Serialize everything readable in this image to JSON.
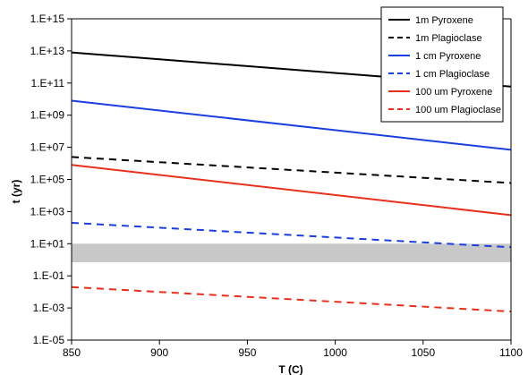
{
  "chart_data": {
    "type": "line",
    "title": "",
    "xlabel": "T (C)",
    "ylabel": "t (yr)",
    "xlim": [
      850,
      1100
    ],
    "ylim": [
      1e-05,
      1000000000000000.0
    ],
    "yscale": "log",
    "x_ticks": [
      "850",
      "900",
      "950",
      "1000",
      "1050",
      "1100"
    ],
    "y_ticks": [
      "1.E-05",
      "1.E-03",
      "1.E-01",
      "1.E+01",
      "1.E+03",
      "1.E+05",
      "1.E+07",
      "1.E+09",
      "1.E+11",
      "1.E+13",
      "1.E+15"
    ],
    "grid": false,
    "legend_position": "top-right",
    "shaded_band": {
      "y": [
        0.7,
        10
      ],
      "color": "#c8c8c8"
    },
    "series": [
      {
        "name": "1m Pyroxene",
        "color": "#000000",
        "dash": "solid",
        "x": [
          850,
          1100
        ],
        "y": [
          8000000000000.0,
          60000000000.0
        ]
      },
      {
        "name": "1m Plagioclase",
        "color": "#000000",
        "dash": "dashed",
        "x": [
          850,
          1100
        ],
        "y": [
          2500000.0,
          60000.0
        ]
      },
      {
        "name": "1 cm Pyroxene",
        "color": "#1a3fe0",
        "dash": "solid",
        "x": [
          850,
          1100
        ],
        "y": [
          8000000000.0,
          7000000.0
        ]
      },
      {
        "name": "1 cm Plagioclase",
        "color": "#1a3fe0",
        "dash": "dashed",
        "x": [
          850,
          1100
        ],
        "y": [
          200,
          6
        ]
      },
      {
        "name": "100 um Pyroxene",
        "color": "#e8301c",
        "dash": "solid",
        "x": [
          850,
          1100
        ],
        "y": [
          800000.0,
          600
        ]
      },
      {
        "name": "100 um Plagioclase",
        "color": "#e8301c",
        "dash": "dashed",
        "x": [
          850,
          1100
        ],
        "y": [
          0.02,
          0.0006
        ]
      }
    ]
  }
}
